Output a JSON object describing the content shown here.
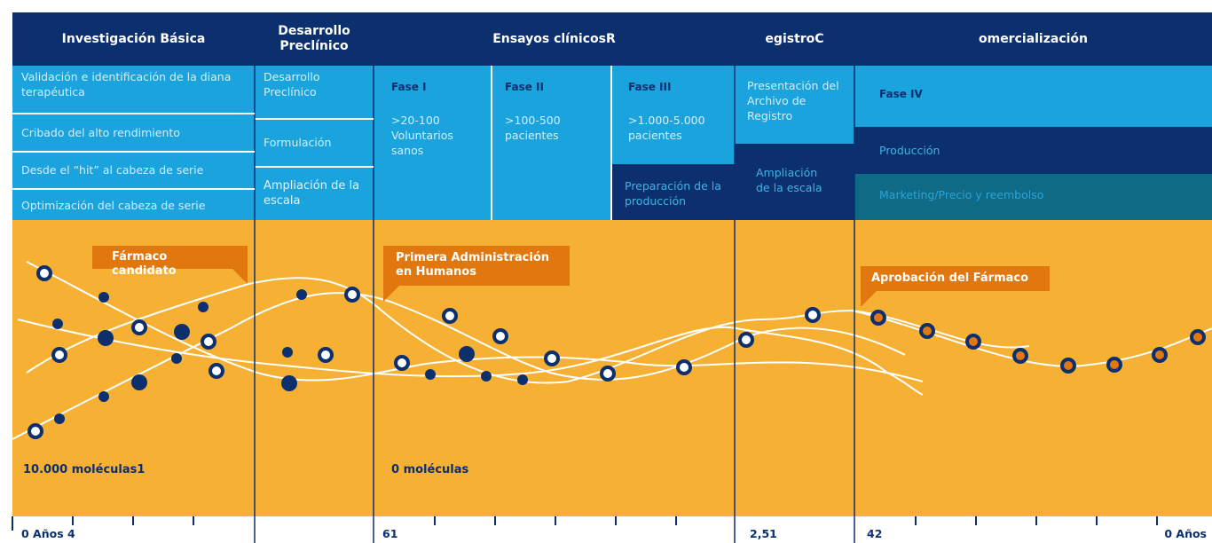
{
  "header": {
    "columns": [
      "Investigación Básica",
      "Desarrollo Preclínico",
      "Ensayos clínicosR",
      "egistroC",
      "omercialización"
    ]
  },
  "basic_research": [
    "Validación e identificación de la diana terapéutica",
    "Cribado del alto rendimiento",
    "Desde el “hit” al cabeza de serie",
    "Optimización del cabeza de serie"
  ],
  "preclinical": [
    "Desarrollo Preclínico",
    "Formulación",
    "Ampliación de la escala"
  ],
  "trials": [
    {
      "phase": "Fase I",
      "text": ">20-100 Voluntarios sanos"
    },
    {
      "phase": "Fase II",
      "text": ">100-500 pacientes"
    },
    {
      "phase": "Fase III",
      "text": ">1.000-5.000 pacientes",
      "extra": "Preparación de la producción"
    }
  ],
  "registry": [
    "Presentación del Archivo de Registro",
    "Ampliación de la escala"
  ],
  "commercial": [
    "Fase IV",
    "Producción",
    "Marketing/Precio y reembolso"
  ],
  "callouts": [
    "Fármaco candidato",
    "Primera Administración en Humanos",
    "Aprobación del Fármaco"
  ],
  "counts": [
    "10.000 moléculas1",
    "0 moléculas"
  ],
  "timeline": [
    "0 Años 4",
    "61",
    "2,51",
    "42",
    "0 Años"
  ]
}
